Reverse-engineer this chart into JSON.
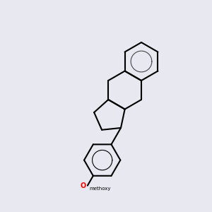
{
  "bg_color": "#e8e8f0",
  "line_color": "#000000",
  "N_color": "#0000ff",
  "O_color": "#ff0000",
  "lw": 1.5,
  "lw2": 1.5,
  "figsize": [
    3.0,
    3.0
  ],
  "dpi": 100
}
